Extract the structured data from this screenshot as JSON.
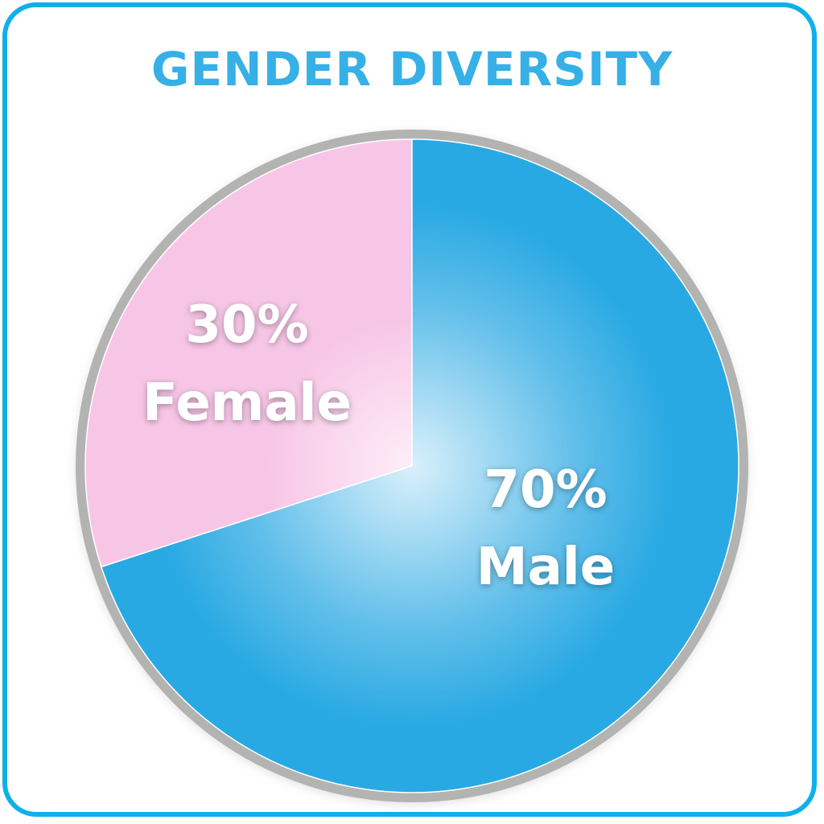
{
  "chart_data": {
    "type": "pie",
    "title": "GENDER DIVERSITY",
    "slices": [
      {
        "label": "Female",
        "value": 30,
        "value_label": "30%",
        "color": "#f7c6e6"
      },
      {
        "label": "Male",
        "value": 70,
        "value_label": "70%",
        "color": "#29a9e3"
      }
    ],
    "start_angle": "12 o'clock",
    "direction": "counterclockwise for Female",
    "ring_color": "#b3b3b1",
    "frame_color": "#0fb0ea",
    "title_color": "#36b0e6"
  }
}
